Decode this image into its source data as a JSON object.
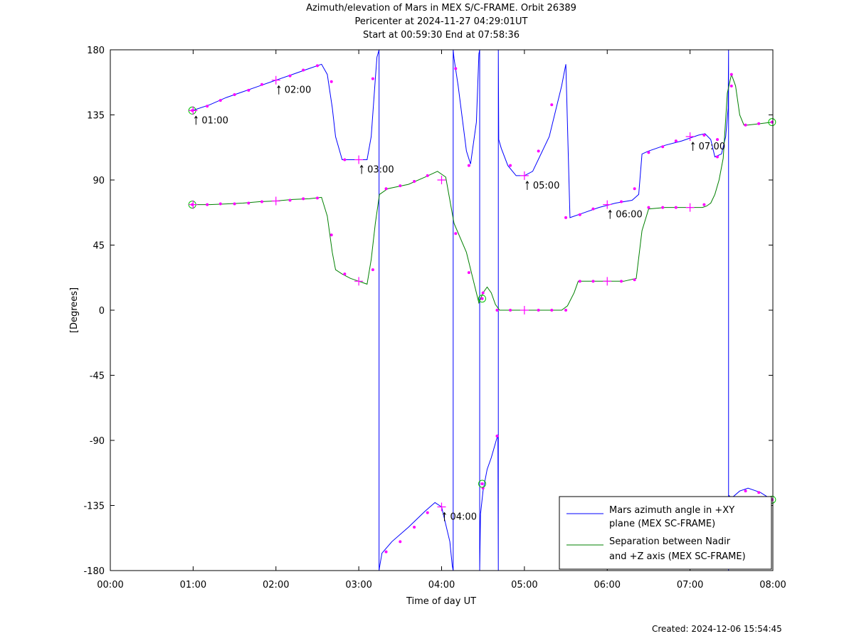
{
  "chart_data": {
    "type": "line",
    "title_lines": [
      "Azimuth/elevation of Mars in MEX S/C-FRAME.  Orbit 26389",
      "Pericenter at 2024-11-27 04:29:01UT",
      "Start at 00:59:30 End at 07:58:36"
    ],
    "xlabel": "Time of day UT",
    "ylabel": "[Degrees]",
    "xlim": [
      0,
      8
    ],
    "ylim": [
      -180,
      180
    ],
    "x_ticks": [
      0,
      1,
      2,
      3,
      4,
      5,
      6,
      7,
      8
    ],
    "x_tick_labels": [
      "00:00",
      "01:00",
      "02:00",
      "03:00",
      "04:00",
      "05:00",
      "06:00",
      "07:00",
      "08:00"
    ],
    "y_ticks": [
      180,
      135,
      90,
      45,
      0,
      -45,
      -90,
      -135,
      -180
    ],
    "y_tick_labels": [
      "180",
      "135",
      "90",
      "45",
      "0",
      "-45",
      "-90",
      "-135",
      "-180"
    ],
    "legend_position": "bottom-right",
    "series": [
      {
        "name": "Mars azimuth angle in +XY plane (MEX SC-FRAME)",
        "legend_lines": [
          "Mars azimuth angle in +XY",
          "plane (MEX SC-FRAME)"
        ],
        "color": "#0000ff",
        "x": [
          0.99,
          1.2,
          1.4,
          1.6,
          1.8,
          2.0,
          2.2,
          2.4,
          2.55,
          2.62,
          2.68,
          2.72,
          2.8,
          2.9,
          3.0,
          3.1,
          3.15,
          3.2,
          3.22,
          3.24,
          null,
          3.25,
          3.28,
          3.4,
          3.6,
          3.8,
          3.92,
          4.0,
          4.1,
          4.13,
          null,
          4.15,
          4.2,
          4.3,
          4.35,
          4.42,
          4.45,
          null,
          4.47,
          4.5,
          4.55,
          4.6,
          4.68,
          null,
          4.69,
          4.72,
          4.8,
          4.9,
          5.0,
          5.1,
          5.3,
          5.45,
          5.48,
          5.5,
          5.55,
          5.7,
          5.9,
          6.1,
          6.3,
          6.38,
          6.42,
          6.5,
          6.7,
          6.9,
          7.1,
          7.18,
          7.25,
          7.3,
          7.38,
          7.43,
          7.46,
          null,
          7.47,
          7.5,
          7.6,
          7.7,
          7.85,
          7.99
        ],
        "y": [
          138,
          142,
          147,
          151,
          155,
          159,
          163,
          167,
          170,
          163,
          140,
          120,
          104,
          104,
          104,
          104,
          120,
          160,
          175,
          179,
          null,
          -178,
          -168,
          -160,
          -150,
          -139,
          -133,
          -136,
          -160,
          -177,
          null,
          174,
          155,
          110,
          101,
          130,
          177,
          null,
          -141,
          -125,
          -110,
          -102,
          -86,
          null,
          118,
          112,
          100,
          93,
          93,
          96,
          120,
          155,
          164,
          170,
          64,
          67,
          71,
          74,
          76,
          80,
          108,
          110,
          114,
          117,
          121,
          122,
          118,
          106,
          108,
          120,
          140,
          null,
          -128,
          -130,
          -125,
          -123,
          -126,
          -131
        ]
      },
      {
        "name": "Separation between Nadir and +Z axis (MEX SC-FRAME)",
        "legend_lines": [
          "Separation between Nadir",
          "and +Z axis (MEX SC-FRAME)"
        ],
        "color": "#008000",
        "x": [
          0.99,
          1.2,
          1.4,
          1.6,
          1.8,
          2.0,
          2.2,
          2.4,
          2.55,
          2.62,
          2.68,
          2.72,
          2.8,
          2.9,
          3.0,
          3.1,
          3.15,
          3.2,
          3.25,
          3.35,
          3.6,
          3.8,
          3.95,
          4.05,
          4.15,
          4.3,
          4.45,
          4.5,
          4.55,
          4.6,
          4.65,
          4.7,
          4.8,
          5.0,
          5.2,
          5.45,
          5.52,
          5.6,
          5.65,
          5.8,
          6.0,
          6.2,
          6.35,
          6.42,
          6.5,
          6.7,
          6.9,
          7.05,
          7.15,
          7.2,
          7.25,
          7.3,
          7.35,
          7.4,
          7.45,
          7.5,
          7.55,
          7.6,
          7.65,
          7.7,
          7.85,
          7.99
        ],
        "y": [
          73,
          73,
          73.5,
          74,
          75,
          75.5,
          76.5,
          77,
          78,
          65,
          40,
          28,
          25,
          22,
          20,
          18,
          35,
          60,
          80,
          84,
          87,
          92,
          96,
          92,
          60,
          40,
          5,
          12,
          16,
          12,
          4,
          0,
          0,
          0,
          0,
          0,
          3,
          12,
          20,
          20,
          20,
          20,
          22,
          55,
          70,
          71,
          71,
          71,
          71,
          72,
          74,
          80,
          90,
          105,
          150,
          163,
          155,
          135,
          128,
          128,
          129,
          130
        ]
      }
    ],
    "markers": {
      "tick_time_labels": [
        {
          "x": 1.0,
          "y": 138,
          "label": "01:00"
        },
        {
          "x": 2.0,
          "y": 159,
          "label": "02:00"
        },
        {
          "x": 3.0,
          "y": 104,
          "label": "03:00"
        },
        {
          "x": 4.0,
          "y": -136,
          "label": "04:00"
        },
        {
          "x": 5.0,
          "y": 93,
          "label": "05:00"
        },
        {
          "x": 6.0,
          "y": 73,
          "label": "06:00"
        },
        {
          "x": 7.0,
          "y": 120,
          "label": "07:00"
        }
      ],
      "circle_markers": [
        {
          "x": 0.99,
          "y": 138
        },
        {
          "x": 0.99,
          "y": 73
        },
        {
          "x": 4.49,
          "y": 8
        },
        {
          "x": 4.49,
          "y": -120
        },
        {
          "x": 7.99,
          "y": 130
        },
        {
          "x": 7.99,
          "y": -131
        }
      ],
      "dot_markers": [
        {
          "x": 1.17,
          "y": 141
        },
        {
          "x": 1.33,
          "y": 145
        },
        {
          "x": 1.5,
          "y": 149
        },
        {
          "x": 1.67,
          "y": 152
        },
        {
          "x": 1.83,
          "y": 156
        },
        {
          "x": 2.17,
          "y": 162
        },
        {
          "x": 2.33,
          "y": 166
        },
        {
          "x": 2.5,
          "y": 169
        },
        {
          "x": 2.67,
          "y": 158
        },
        {
          "x": 2.83,
          "y": 104
        },
        {
          "x": 3.17,
          "y": 160
        },
        {
          "x": 3.33,
          "y": -167
        },
        {
          "x": 3.5,
          "y": -160
        },
        {
          "x": 3.67,
          "y": -150
        },
        {
          "x": 3.83,
          "y": -140
        },
        {
          "x": 4.17,
          "y": 167
        },
        {
          "x": 4.33,
          "y": 100
        },
        {
          "x": 4.5,
          "y": -123
        },
        {
          "x": 4.67,
          "y": -87
        },
        {
          "x": 4.83,
          "y": 100
        },
        {
          "x": 5.17,
          "y": 110
        },
        {
          "x": 5.33,
          "y": 142
        },
        {
          "x": 5.5,
          "y": 64
        },
        {
          "x": 5.67,
          "y": 66
        },
        {
          "x": 5.83,
          "y": 70
        },
        {
          "x": 6.17,
          "y": 75
        },
        {
          "x": 6.33,
          "y": 84
        },
        {
          "x": 6.5,
          "y": 109
        },
        {
          "x": 6.67,
          "y": 113
        },
        {
          "x": 6.83,
          "y": 117
        },
        {
          "x": 7.17,
          "y": 121
        },
        {
          "x": 7.33,
          "y": 106
        },
        {
          "x": 7.5,
          "y": 155
        },
        {
          "x": 7.67,
          "y": -125
        },
        {
          "x": 7.83,
          "y": -126
        },
        {
          "x": 1.17,
          "y": 73
        },
        {
          "x": 1.33,
          "y": 73.5
        },
        {
          "x": 1.5,
          "y": 73.5
        },
        {
          "x": 1.67,
          "y": 74
        },
        {
          "x": 1.83,
          "y": 75
        },
        {
          "x": 2.17,
          "y": 76
        },
        {
          "x": 2.33,
          "y": 77
        },
        {
          "x": 2.5,
          "y": 77.5
        },
        {
          "x": 2.67,
          "y": 52
        },
        {
          "x": 2.83,
          "y": 25
        },
        {
          "x": 3.17,
          "y": 28
        },
        {
          "x": 3.33,
          "y": 84
        },
        {
          "x": 3.5,
          "y": 86
        },
        {
          "x": 3.67,
          "y": 89
        },
        {
          "x": 3.83,
          "y": 93
        },
        {
          "x": 4.17,
          "y": 53
        },
        {
          "x": 4.33,
          "y": 26
        },
        {
          "x": 4.5,
          "y": 12
        },
        {
          "x": 4.67,
          "y": 0
        },
        {
          "x": 4.83,
          "y": 0
        },
        {
          "x": 5.17,
          "y": 0
        },
        {
          "x": 5.33,
          "y": 0
        },
        {
          "x": 5.5,
          "y": 0
        },
        {
          "x": 5.67,
          "y": 20
        },
        {
          "x": 5.83,
          "y": 20
        },
        {
          "x": 6.17,
          "y": 20
        },
        {
          "x": 6.33,
          "y": 21
        },
        {
          "x": 6.5,
          "y": 71
        },
        {
          "x": 6.67,
          "y": 71
        },
        {
          "x": 6.83,
          "y": 71
        },
        {
          "x": 7.17,
          "y": 73
        },
        {
          "x": 7.33,
          "y": 118
        },
        {
          "x": 7.5,
          "y": 163
        },
        {
          "x": 7.67,
          "y": 128
        },
        {
          "x": 7.83,
          "y": 129
        }
      ],
      "plus_markers": [
        {
          "x": 3.0,
          "y": 20
        },
        {
          "x": 4.0,
          "y": 90
        },
        {
          "x": 6.0,
          "y": 20
        },
        {
          "x": 5.0,
          "y": 0
        },
        {
          "x": 7.0,
          "y": 71
        },
        {
          "x": 2.0,
          "y": 75.5
        },
        {
          "x": 1.0,
          "y": 73
        }
      ]
    }
  },
  "footer": {
    "created_text": "Created: 2024-12-06 15:54:45"
  },
  "colors": {
    "marker_dot": "#ff00ff",
    "marker_circle": "#00c000",
    "axis": "#000000"
  }
}
